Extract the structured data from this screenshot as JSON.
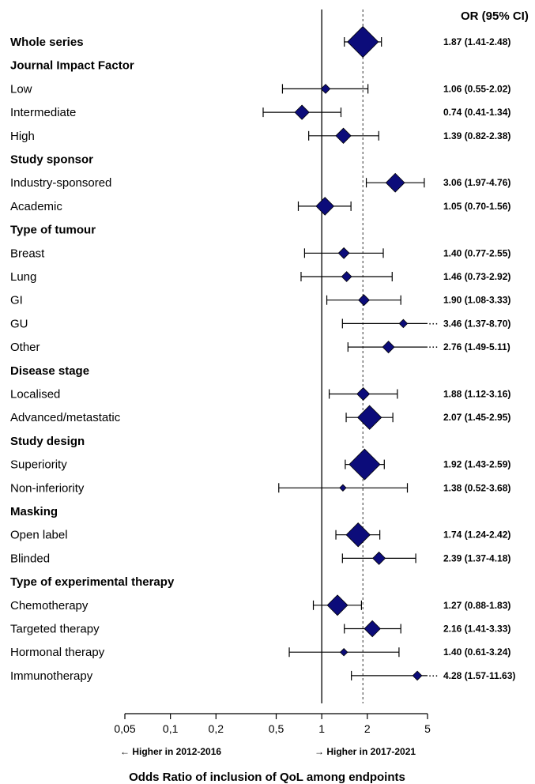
{
  "chart_data": {
    "type": "forest",
    "x_scale": "log",
    "xlim": [
      0.05,
      5
    ],
    "reference_line": 1,
    "pooled_line": 1.87,
    "col_header": "OR (95% CI)",
    "xlabel": "Odds Ratio of inclusion of QoL among endpoints",
    "left_direction_label": "← Higher in 2012-2016",
    "right_direction_label": "→ Higher in 2017-2021",
    "ticks": [
      {
        "v": 0.05,
        "label": "0,05"
      },
      {
        "v": 0.1,
        "label": "0,1"
      },
      {
        "v": 0.2,
        "label": "0,2"
      },
      {
        "v": 0.5,
        "label": "0,5"
      },
      {
        "v": 1,
        "label": "1"
      },
      {
        "v": 2,
        "label": "2"
      },
      {
        "v": 5,
        "label": "5"
      }
    ],
    "rows": [
      {
        "kind": "group",
        "label": "Whole series",
        "or": 1.87,
        "lo": 1.41,
        "hi": 2.48,
        "text": "1.87 (1.41-2.48)",
        "w": 3
      },
      {
        "kind": "header",
        "label": "Journal Impact Factor"
      },
      {
        "kind": "item",
        "label": "Low",
        "or": 1.06,
        "lo": 0.55,
        "hi": 2.02,
        "text": "1.06 (0.55-2.02)",
        "w": 0.5
      },
      {
        "kind": "item",
        "label": "Intermediate",
        "or": 0.74,
        "lo": 0.41,
        "hi": 1.34,
        "text": "0.74 (0.41-1.34)",
        "w": 1.1
      },
      {
        "kind": "item",
        "label": "High",
        "or": 1.39,
        "lo": 0.82,
        "hi": 2.38,
        "text": "1.39 (0.82-2.38)",
        "w": 1.2
      },
      {
        "kind": "header",
        "label": "Study sponsor"
      },
      {
        "kind": "item",
        "label": "Industry-sponsored",
        "or": 3.06,
        "lo": 1.97,
        "hi": 4.76,
        "text": "3.06 (1.97-4.76)",
        "w": 1.6
      },
      {
        "kind": "item",
        "label": "Academic",
        "or": 1.05,
        "lo": 0.7,
        "hi": 1.56,
        "text": "1.05 (0.70-1.56)",
        "w": 1.5
      },
      {
        "kind": "header",
        "label": "Type of tumour"
      },
      {
        "kind": "item",
        "label": "Breast",
        "or": 1.4,
        "lo": 0.77,
        "hi": 2.55,
        "text": "1.40 (0.77-2.55)",
        "w": 0.7
      },
      {
        "kind": "item",
        "label": "Lung",
        "or": 1.46,
        "lo": 0.73,
        "hi": 2.92,
        "text": "1.46 (0.73-2.92)",
        "w": 0.6
      },
      {
        "kind": "item",
        "label": "GI",
        "or": 1.9,
        "lo": 1.08,
        "hi": 3.33,
        "text": "1.90 (1.08-3.33)",
        "w": 0.7
      },
      {
        "kind": "item",
        "label": "GU",
        "or": 3.46,
        "lo": 1.37,
        "hi": 8.7,
        "text": "3.46 (1.37-8.70)",
        "w": 0.4
      },
      {
        "kind": "item",
        "label": "Other",
        "or": 2.76,
        "lo": 1.49,
        "hi": 5.11,
        "text": "2.76 (1.49-5.11)",
        "w": 0.8
      },
      {
        "kind": "header",
        "label": "Disease stage"
      },
      {
        "kind": "item",
        "label": "Localised",
        "or": 1.88,
        "lo": 1.12,
        "hi": 3.16,
        "text": "1.88 (1.12-3.16)",
        "w": 0.9
      },
      {
        "kind": "item",
        "label": "Advanced/metastatic",
        "or": 2.07,
        "lo": 1.45,
        "hi": 2.95,
        "text": "2.07 (1.45-2.95)",
        "w": 2.2
      },
      {
        "kind": "header",
        "label": "Study design"
      },
      {
        "kind": "item",
        "label": "Superiority",
        "or": 1.92,
        "lo": 1.43,
        "hi": 2.59,
        "text": "1.92 (1.43-2.59)",
        "w": 3
      },
      {
        "kind": "item",
        "label": "Non-inferiority",
        "or": 1.38,
        "lo": 0.52,
        "hi": 3.68,
        "text": "1.38 (0.52-3.68)",
        "w": 0.2
      },
      {
        "kind": "header",
        "label": "Masking"
      },
      {
        "kind": "item",
        "label": "Open label",
        "or": 1.74,
        "lo": 1.24,
        "hi": 2.42,
        "text": "1.74 (1.24-2.42)",
        "w": 2.2
      },
      {
        "kind": "item",
        "label": "Blinded",
        "or": 2.39,
        "lo": 1.37,
        "hi": 4.18,
        "text": "2.39 (1.37-4.18)",
        "w": 0.9
      },
      {
        "kind": "header",
        "label": "Type of experimental therapy"
      },
      {
        "kind": "item",
        "label": "Chemotherapy",
        "or": 1.27,
        "lo": 0.88,
        "hi": 1.83,
        "text": "1.27 (0.88-1.83)",
        "w": 1.8
      },
      {
        "kind": "item",
        "label": "Targeted therapy",
        "or": 2.16,
        "lo": 1.41,
        "hi": 3.33,
        "text": "2.16 (1.41-3.33)",
        "w": 1.3
      },
      {
        "kind": "item",
        "label": "Hormonal therapy",
        "or": 1.4,
        "lo": 0.61,
        "hi": 3.24,
        "text": "1.40 (0.61-3.24)",
        "w": 0.3
      },
      {
        "kind": "item",
        "label": "Immunotherapy",
        "or": 4.28,
        "lo": 1.57,
        "hi": 11.63,
        "text": "4.28 (1.57-11.63)",
        "w": 0.5
      }
    ],
    "colors": {
      "marker": "#0c0c7a",
      "line": "#000000"
    }
  }
}
